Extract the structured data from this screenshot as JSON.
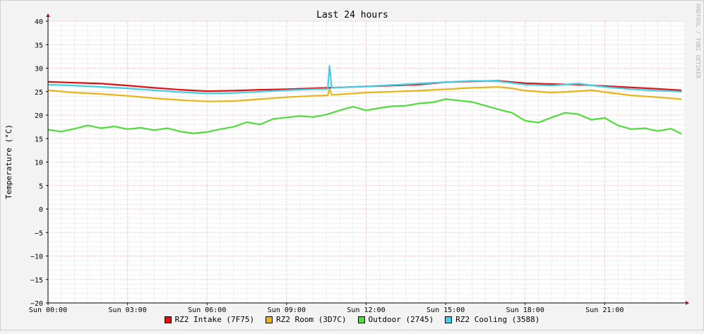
{
  "chart_data": {
    "type": "line",
    "title": "Last 24 hours",
    "ylabel": "Temperature (°C)",
    "watermark": "RRDTOOL / TOBI OETIKER",
    "ylim": [
      -20,
      40
    ],
    "yticks": [
      -20,
      -15,
      -10,
      -5,
      0,
      5,
      10,
      15,
      20,
      25,
      30,
      35,
      40
    ],
    "xlim": [
      0,
      24
    ],
    "xticks": [
      {
        "hour": 0,
        "label": "Sun 00:00"
      },
      {
        "hour": 3,
        "label": "Sun 03:00"
      },
      {
        "hour": 6,
        "label": "Sun 06:00"
      },
      {
        "hour": 9,
        "label": "Sun 09:00"
      },
      {
        "hour": 12,
        "label": "Sun 12:00"
      },
      {
        "hour": 15,
        "label": "Sun 15:00"
      },
      {
        "hour": 18,
        "label": "Sun 18:00"
      },
      {
        "hour": 21,
        "label": "Sun 21:00"
      }
    ],
    "grid": true,
    "legend": "bottom",
    "series": [
      {
        "name": "RZ2 Intake (7F75)",
        "color": "#e01010",
        "x": [
          0,
          1,
          2,
          3,
          4,
          5,
          6,
          7,
          8,
          9,
          10,
          10.6,
          11,
          12,
          13,
          14,
          15,
          16,
          17,
          18,
          19,
          20,
          21,
          22,
          23,
          23.9
        ],
        "y": [
          27.1,
          26.9,
          26.7,
          26.3,
          25.8,
          25.4,
          25.1,
          25.2,
          25.4,
          25.5,
          25.7,
          25.8,
          25.9,
          26.1,
          26.3,
          26.5,
          27.0,
          27.2,
          27.3,
          26.8,
          26.6,
          26.5,
          26.2,
          25.9,
          25.6,
          25.3
        ]
      },
      {
        "name": "RZ2 Room (3D7C)",
        "color": "#e8b418",
        "x": [
          0,
          1,
          2,
          3,
          4,
          5,
          6,
          7,
          8,
          9,
          10,
          10.55,
          10.62,
          10.7,
          11,
          12,
          13,
          14,
          15,
          16,
          17,
          17.5,
          18,
          19,
          20,
          20.5,
          21,
          22,
          23,
          23.9
        ],
        "y": [
          25.3,
          24.8,
          24.5,
          24.1,
          23.6,
          23.2,
          22.9,
          23.0,
          23.4,
          23.8,
          24.1,
          24.2,
          25.5,
          24.3,
          24.4,
          24.8,
          25.0,
          25.2,
          25.5,
          25.8,
          26.0,
          25.7,
          25.2,
          24.8,
          25.1,
          25.3,
          24.9,
          24.2,
          23.8,
          23.4
        ]
      },
      {
        "name": "Outdoor (2745)",
        "color": "#50dc3c",
        "x": [
          0,
          0.5,
          1,
          1.5,
          2,
          2.5,
          3,
          3.5,
          4,
          4.5,
          5,
          5.5,
          6,
          6.5,
          7,
          7.5,
          8,
          8.5,
          9,
          9.5,
          10,
          10.5,
          11,
          11.5,
          12,
          12.5,
          13,
          13.5,
          14,
          14.5,
          15,
          15.5,
          16,
          16.5,
          17,
          17.5,
          18,
          18.5,
          19,
          19.5,
          20,
          20.5,
          21,
          21.5,
          22,
          22.5,
          23,
          23.5,
          23.9
        ],
        "y": [
          16.9,
          16.5,
          17.1,
          17.8,
          17.2,
          17.6,
          17.0,
          17.3,
          16.8,
          17.2,
          16.5,
          16.1,
          16.4,
          17.0,
          17.5,
          18.5,
          18.0,
          19.2,
          19.5,
          19.8,
          19.6,
          20.1,
          21.0,
          21.8,
          21.0,
          21.5,
          21.9,
          22.0,
          22.5,
          22.7,
          23.4,
          23.1,
          22.8,
          22.0,
          21.2,
          20.5,
          18.8,
          18.4,
          19.5,
          20.5,
          20.2,
          19.0,
          19.4,
          17.8,
          17.0,
          17.2,
          16.6,
          17.1,
          16.0
        ]
      },
      {
        "name": "RZ2 Cooling (3588)",
        "color": "#40d0e8",
        "x": [
          0,
          1,
          2,
          3,
          4,
          5,
          6,
          7,
          8,
          9,
          10,
          10.55,
          10.62,
          10.7,
          11,
          12,
          13,
          14,
          15,
          16,
          17,
          18,
          19,
          20,
          21,
          22,
          23,
          23.9
        ],
        "y": [
          26.5,
          26.3,
          26.0,
          25.7,
          25.3,
          24.9,
          24.6,
          24.7,
          25.0,
          25.3,
          25.5,
          25.6,
          30.5,
          25.8,
          25.9,
          26.1,
          26.4,
          26.7,
          27.0,
          27.3,
          27.2,
          26.5,
          26.3,
          26.7,
          26.0,
          25.5,
          25.2,
          25.0
        ]
      }
    ]
  }
}
